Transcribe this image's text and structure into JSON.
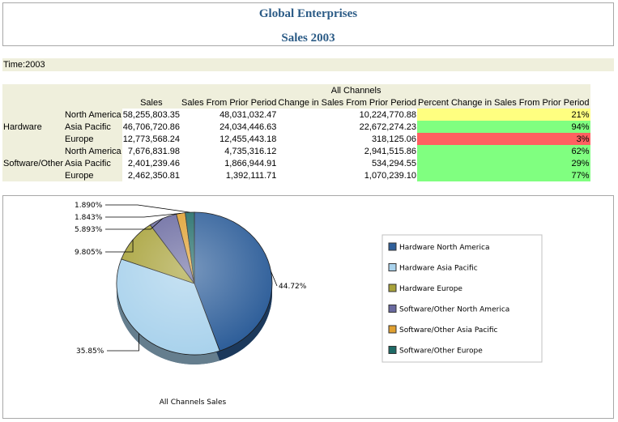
{
  "report": {
    "title": "Global Enterprises",
    "subtitle": "Sales 2003"
  },
  "page_item": "Time:2003",
  "pivot": {
    "group_header": "All Channels",
    "columns": [
      "Sales",
      "Sales From Prior Period",
      "Change in Sales From Prior Period",
      "Percent Change in Sales From Prior Period"
    ],
    "rows": [
      {
        "product": "Hardware",
        "region": "North America",
        "sales": "58,255,803.35",
        "prior": "48,031,032.47",
        "change": "10,224,770.88",
        "pct": "21%",
        "pct_color": "#ffff80"
      },
      {
        "product": "",
        "region": "Asia Pacific",
        "sales": "46,706,720.86",
        "prior": "24,034,446.63",
        "change": "22,672,274.23",
        "pct": "94%",
        "pct_color": "#80ff80"
      },
      {
        "product": "",
        "region": "Europe",
        "sales": "12,773,568.24",
        "prior": "12,455,443.18",
        "change": "318,125.06",
        "pct": "3%",
        "pct_color": "#ff6060"
      },
      {
        "product": "Software/Other",
        "region": "North America",
        "sales": "7,676,831.98",
        "prior": "4,735,316.12",
        "change": "2,941,515.86",
        "pct": "62%",
        "pct_color": "#80ff80"
      },
      {
        "product": "",
        "region": "Asia Pacific",
        "sales": "2,401,239.46",
        "prior": "1,866,944.91",
        "change": "534,294.55",
        "pct": "29%",
        "pct_color": "#80ff80"
      },
      {
        "product": "",
        "region": "Europe",
        "sales": "2,462,350.81",
        "prior": "1,392,111.71",
        "change": "1,070,239.10",
        "pct": "77%",
        "pct_color": "#80ff80"
      }
    ],
    "row_groups": [
      {
        "label": "Hardware"
      },
      {
        "label": "Software/Other"
      }
    ]
  },
  "chart_data": {
    "type": "pie",
    "title": "All Channels Sales",
    "legend_position": "right",
    "slices": [
      {
        "name": "Hardware North America",
        "value": 44.72,
        "label": "44.72%",
        "color": "#2f5f9a"
      },
      {
        "name": "Hardware Asia Pacific",
        "value": 35.85,
        "label": "35.85%",
        "color": "#a9d2ec"
      },
      {
        "name": "Hardware Europe",
        "value": 9.805,
        "label": "9.805%",
        "color": "#a8a23a"
      },
      {
        "name": "Software/Other North America",
        "value": 5.893,
        "label": "5.893%",
        "color": "#6a6aa0"
      },
      {
        "name": "Software/Other Asia Pacific",
        "value": 1.843,
        "label": "1.843%",
        "color": "#e0a030"
      },
      {
        "name": "Software/Other Europe",
        "value": 1.89,
        "label": "1.890%",
        "color": "#1e6a66"
      }
    ]
  }
}
